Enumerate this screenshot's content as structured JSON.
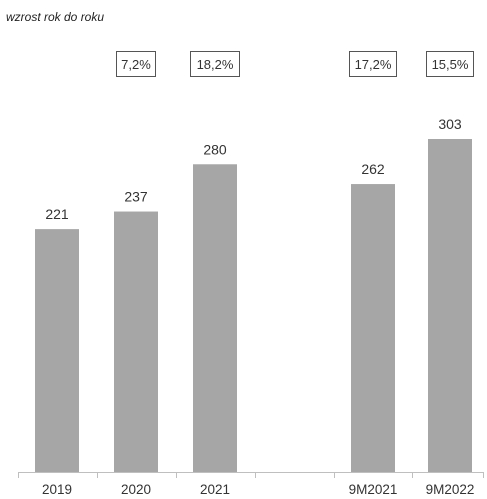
{
  "subtitle": "wzrost rok do roku",
  "colors": {
    "bar": "#a6a6a6",
    "axis": "#bfbfbf",
    "text": "#333333",
    "box_border": "#555555"
  },
  "chart_data": {
    "type": "bar",
    "title": "",
    "xlabel": "",
    "ylabel": "",
    "categories": [
      "2019",
      "2020",
      "2021",
      "9M2021",
      "9M2022"
    ],
    "values": [
      221,
      237,
      280,
      262,
      303
    ],
    "data_labels": [
      "221",
      "237",
      "280",
      "262",
      "303"
    ],
    "growth_labels": [
      "",
      "7,2%",
      "18,2%",
      "17,2%",
      "15,5%"
    ],
    "ylim": [
      0,
      303
    ],
    "grid": false,
    "legend": "none"
  }
}
